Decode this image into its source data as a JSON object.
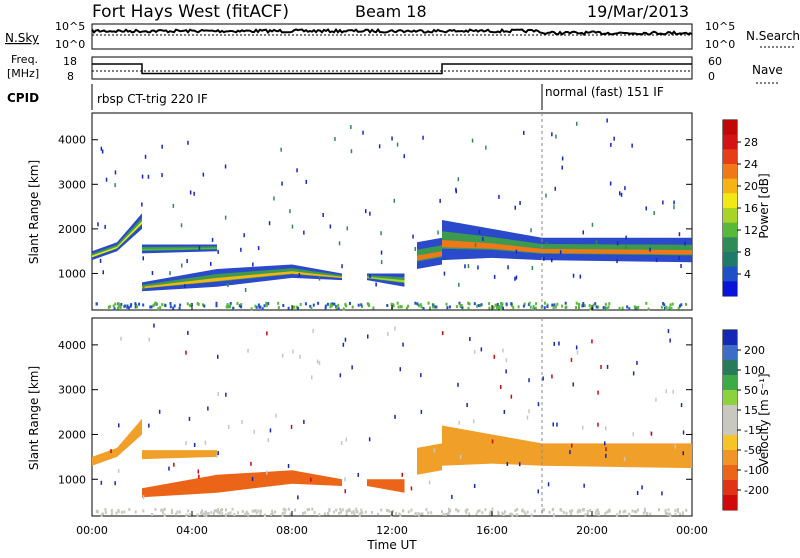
{
  "header": {
    "title": "Fort Hays West (fitACF)",
    "beam": "Beam 18",
    "date": "19/Mar/2013"
  },
  "noise_panel": {
    "left_label": "N.Sky",
    "right_label": "N.Search",
    "left_ticks": [
      "10^5",
      "10^0"
    ],
    "right_ticks": [
      "10^5",
      "10^0"
    ]
  },
  "freq_panel": {
    "left_label_1": "Freq.",
    "left_label_2": "[MHz]",
    "right_label": "Nave",
    "left_ticks": [
      "18",
      "8"
    ],
    "right_ticks": [
      "60",
      "0"
    ],
    "freq_segments": [
      {
        "start": 0.0,
        "end": 2.0,
        "mhz": 14.8
      },
      {
        "start": 2.0,
        "end": 14.0,
        "mhz": 10.5
      },
      {
        "start": 14.0,
        "end": 24.0,
        "mhz": 14.8
      }
    ]
  },
  "cpid_panel": {
    "label": "CPID",
    "mode1": "rbsp CT-trig 220 IF",
    "mode2": "normal (fast) 151 IF",
    "switch_hour": 18.0
  },
  "x_axis": {
    "title": "Time UT",
    "ticks": [
      "00:00",
      "04:00",
      "08:00",
      "12:00",
      "16:00",
      "20:00",
      "00:00"
    ],
    "range_hours": [
      0,
      24
    ]
  },
  "y_axis": {
    "title": "Slant Range [km]",
    "range_km": [
      180,
      4600
    ],
    "ticks": [
      "1000",
      "2000",
      "3000",
      "4000"
    ]
  },
  "power_bar": {
    "title": "Power [dB]",
    "ticks": [
      "4",
      "8",
      "12",
      "16",
      "20",
      "24",
      "28"
    ],
    "colors": [
      "#0a14d8",
      "#2050c8",
      "#1f7a6a",
      "#2e8b57",
      "#58b838",
      "#a8d428",
      "#f2e814",
      "#f6b414",
      "#f07818",
      "#e83c18",
      "#d41414",
      "#c00808"
    ]
  },
  "velocity_bar": {
    "title": "Velocity [m s⁻¹]",
    "ticks": [
      "200",
      "100",
      "50",
      "15",
      "-15",
      "-50",
      "-100",
      "-200"
    ],
    "colors": [
      "#1428b4",
      "#3c6ec8",
      "#287a5a",
      "#3caa46",
      "#8cd23c",
      "#c8c8c0",
      "#c8c8c0",
      "#f4c428",
      "#f09628",
      "#ec6418",
      "#e03214",
      "#d00a0a"
    ]
  },
  "chart_data": {
    "type": "heatmap",
    "x_unit": "hours UT",
    "y_unit": "km",
    "bands": [
      {
        "name": "band-a",
        "points": [
          [
            0.0,
            1500,
            1300
          ],
          [
            1.0,
            1700,
            1500
          ],
          [
            2.0,
            2350,
            2000
          ]
        ],
        "power": 16,
        "velocity": -15
      },
      {
        "name": "band-b",
        "points": [
          [
            2.0,
            1650,
            1450
          ],
          [
            5.0,
            1650,
            1500
          ]
        ],
        "power": 12,
        "velocity": -15
      },
      {
        "name": "band-c",
        "points": [
          [
            2.0,
            800,
            600
          ],
          [
            5.0,
            1100,
            700
          ],
          [
            8.0,
            1200,
            900
          ],
          [
            10.0,
            1000,
            850
          ]
        ],
        "power": 20,
        "velocity": -50
      },
      {
        "name": "band-d",
        "points": [
          [
            11.0,
            1000,
            850
          ],
          [
            12.5,
            1000,
            700
          ]
        ],
        "power": 14,
        "velocity": -50
      },
      {
        "name": "band-e",
        "points": [
          [
            13.0,
            1700,
            1100
          ],
          [
            14.0,
            1800,
            1200
          ]
        ],
        "power": 22,
        "velocity": -15
      },
      {
        "name": "band-f",
        "points": [
          [
            14.0,
            2200,
            1300
          ],
          [
            16.0,
            2000,
            1350
          ],
          [
            18.0,
            1800,
            1300
          ],
          [
            24.0,
            1800,
            1250
          ]
        ],
        "power": 22,
        "velocity": -15
      }
    ],
    "ground_scatter_km": 300,
    "ylim": [
      180,
      4600
    ],
    "xlim": [
      0,
      24
    ]
  }
}
